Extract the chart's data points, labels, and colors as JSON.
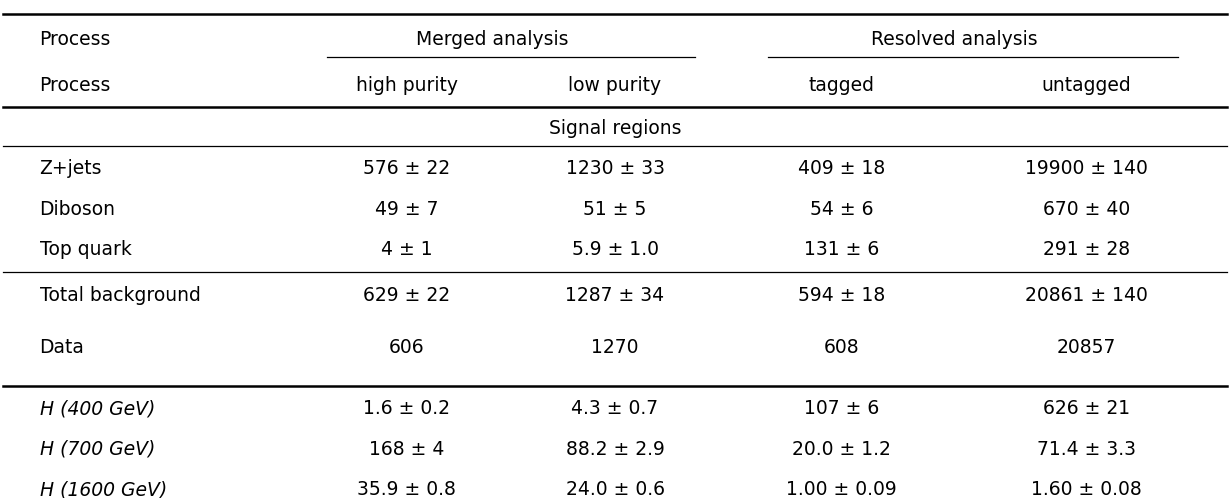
{
  "col_headers_row2": [
    "Process",
    "high purity",
    "low purity",
    "tagged",
    "untagged"
  ],
  "signal_region_label": "Signal regions",
  "rows_bg": [
    [
      "Z+jets",
      "576 ± 22",
      "1230 ± 33",
      "409 ± 18",
      "19900 ± 140"
    ],
    [
      "Diboson",
      "49 ± 7",
      "51 ± 5",
      "54 ± 6",
      "670 ± 40"
    ],
    [
      "Top quark",
      "4 ± 1",
      "5.9 ± 1.0",
      "131 ± 6",
      "291 ± 28"
    ]
  ],
  "row_total": [
    "Total background",
    "629 ± 22",
    "1287 ± 34",
    "594 ± 18",
    "20861 ± 140"
  ],
  "row_data": [
    "Data",
    "606",
    "1270",
    "608",
    "20857"
  ],
  "rows_signal": [
    [
      "H (400 GeV)",
      "1.6 ± 0.2",
      "4.3 ± 0.7",
      "107 ± 6",
      "626 ± 21"
    ],
    [
      "H (700 GeV)",
      "168 ± 4",
      "88.2 ± 2.9",
      "20.0 ± 1.2",
      "71.4 ± 3.3"
    ],
    [
      "H (1600 GeV)",
      "35.9 ± 0.8",
      "24.0 ± 0.6",
      "1.00 ± 0.09",
      "1.60 ± 0.08"
    ]
  ],
  "text_color": "#000000",
  "font_size": 13.5
}
